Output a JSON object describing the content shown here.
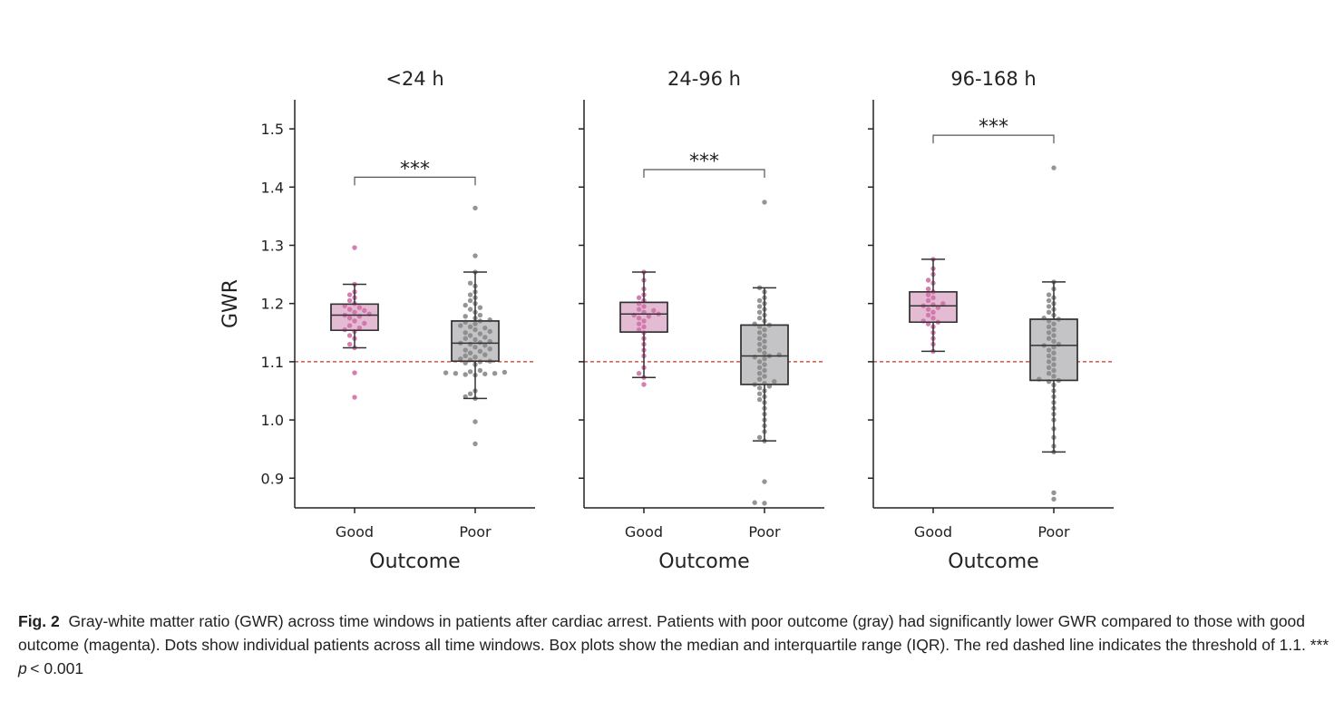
{
  "chart_data": {
    "type": "box+swarm",
    "ylabel": "GWR",
    "xlabel": "Outcome",
    "ylim": [
      0.849,
      1.55
    ],
    "yticks": [
      0.9,
      1.0,
      1.1,
      1.2,
      1.3,
      1.4,
      1.5
    ],
    "ytick_labels": [
      "0.9",
      "1.0",
      "1.1",
      "1.2",
      "1.3",
      "1.4",
      "1.5"
    ],
    "threshold": 1.1,
    "threshold_color": "#c0392b",
    "categories": [
      "Good",
      "Poor"
    ],
    "colors": {
      "Good": {
        "box": "#e3bcd4",
        "dot": "#d070a8"
      },
      "Poor": {
        "box": "#c4c4c6",
        "dot": "#8a8a8a"
      }
    },
    "panels": [
      {
        "title": "<24 h",
        "significance": "***",
        "sig_y": 1.417,
        "boxes": [
          {
            "category": "Good",
            "whislo": 1.124,
            "q1": 1.154,
            "med": 1.18,
            "q3": 1.199,
            "whishi": 1.233
          },
          {
            "category": "Poor",
            "whislo": 1.037,
            "q1": 1.101,
            "med": 1.132,
            "q3": 1.17,
            "whishi": 1.254
          }
        ],
        "points": {
          "Good": [
            1.296,
            1.233,
            1.22,
            1.215,
            1.21,
            1.205,
            1.2,
            1.196,
            1.193,
            1.19,
            1.188,
            1.185,
            1.182,
            1.18,
            1.178,
            1.175,
            1.17,
            1.166,
            1.162,
            1.158,
            1.155,
            1.152,
            1.145,
            1.14,
            1.13,
            1.124,
            1.081,
            1.039
          ],
          "Poor": [
            1.364,
            1.282,
            1.254,
            1.235,
            1.23,
            1.22,
            1.215,
            1.21,
            1.205,
            1.2,
            1.197,
            1.193,
            1.19,
            1.185,
            1.18,
            1.178,
            1.175,
            1.172,
            1.17,
            1.168,
            1.165,
            1.162,
            1.16,
            1.158,
            1.155,
            1.152,
            1.15,
            1.148,
            1.145,
            1.142,
            1.14,
            1.138,
            1.135,
            1.133,
            1.132,
            1.13,
            1.128,
            1.125,
            1.122,
            1.12,
            1.118,
            1.115,
            1.112,
            1.11,
            1.108,
            1.105,
            1.103,
            1.101,
            1.1,
            1.098,
            1.095,
            1.085,
            1.083,
            1.082,
            1.081,
            1.08,
            1.08,
            1.079,
            1.078,
            1.077,
            1.05,
            1.045,
            1.04,
            1.037,
            0.997,
            0.959
          ]
        }
      },
      {
        "title": "24-96 h",
        "significance": "***",
        "sig_y": 1.43,
        "boxes": [
          {
            "category": "Good",
            "whislo": 1.073,
            "q1": 1.151,
            "med": 1.182,
            "q3": 1.202,
            "whishi": 1.254
          },
          {
            "category": "Poor",
            "whislo": 0.964,
            "q1": 1.061,
            "med": 1.11,
            "q3": 1.163,
            "whishi": 1.227
          }
        ],
        "points": {
          "Good": [
            1.254,
            1.24,
            1.225,
            1.215,
            1.21,
            1.205,
            1.2,
            1.195,
            1.19,
            1.188,
            1.185,
            1.182,
            1.18,
            1.178,
            1.175,
            1.17,
            1.165,
            1.16,
            1.155,
            1.15,
            1.14,
            1.13,
            1.12,
            1.11,
            1.09,
            1.08,
            1.073,
            1.061
          ],
          "Poor": [
            1.374,
            1.227,
            1.22,
            1.21,
            1.205,
            1.2,
            1.195,
            1.19,
            1.185,
            1.18,
            1.175,
            1.17,
            1.165,
            1.163,
            1.16,
            1.155,
            1.15,
            1.145,
            1.14,
            1.135,
            1.13,
            1.125,
            1.12,
            1.115,
            1.112,
            1.11,
            1.108,
            1.105,
            1.1,
            1.095,
            1.09,
            1.085,
            1.08,
            1.075,
            1.07,
            1.066,
            1.063,
            1.061,
            1.058,
            1.055,
            1.05,
            1.045,
            1.04,
            1.035,
            1.03,
            1.02,
            1.01,
            1.0,
            0.99,
            0.98,
            0.97,
            0.964,
            0.894,
            0.858,
            0.857
          ]
        }
      },
      {
        "title": "96-168 h",
        "significance": "***",
        "sig_y": 1.489,
        "boxes": [
          {
            "category": "Good",
            "whislo": 1.118,
            "q1": 1.168,
            "med": 1.196,
            "q3": 1.22,
            "whishi": 1.276
          },
          {
            "category": "Poor",
            "whislo": 0.945,
            "q1": 1.068,
            "med": 1.128,
            "q3": 1.173,
            "whishi": 1.237
          }
        ],
        "points": {
          "Good": [
            1.276,
            1.26,
            1.25,
            1.24,
            1.235,
            1.225,
            1.22,
            1.215,
            1.21,
            1.205,
            1.2,
            1.198,
            1.196,
            1.193,
            1.19,
            1.185,
            1.18,
            1.175,
            1.17,
            1.168,
            1.165,
            1.16,
            1.15,
            1.14,
            1.13,
            1.118
          ],
          "Poor": [
            1.433,
            1.237,
            1.225,
            1.215,
            1.21,
            1.205,
            1.2,
            1.195,
            1.19,
            1.185,
            1.18,
            1.175,
            1.173,
            1.17,
            1.165,
            1.16,
            1.155,
            1.15,
            1.145,
            1.14,
            1.135,
            1.13,
            1.128,
            1.125,
            1.12,
            1.115,
            1.11,
            1.105,
            1.1,
            1.095,
            1.09,
            1.085,
            1.08,
            1.075,
            1.07,
            1.068,
            1.066,
            1.06,
            1.05,
            1.04,
            1.03,
            1.02,
            1.01,
            1.0,
            0.985,
            0.97,
            0.955,
            0.945,
            0.875,
            0.864
          ]
        }
      }
    ]
  },
  "caption": {
    "label": "Fig. 2",
    "text": "Gray-white matter ratio (GWR) across time windows in patients after cardiac arrest. Patients with poor outcome (gray) had significantly lower GWR compared to those with good outcome (magenta). Dots show individual patients across all time windows. Box plots show the median and interquartile range (IQR). The red dashed line indicates the threshold of 1.1. *** ",
    "p_symbol": "p",
    "p_text": "< 0.001"
  }
}
